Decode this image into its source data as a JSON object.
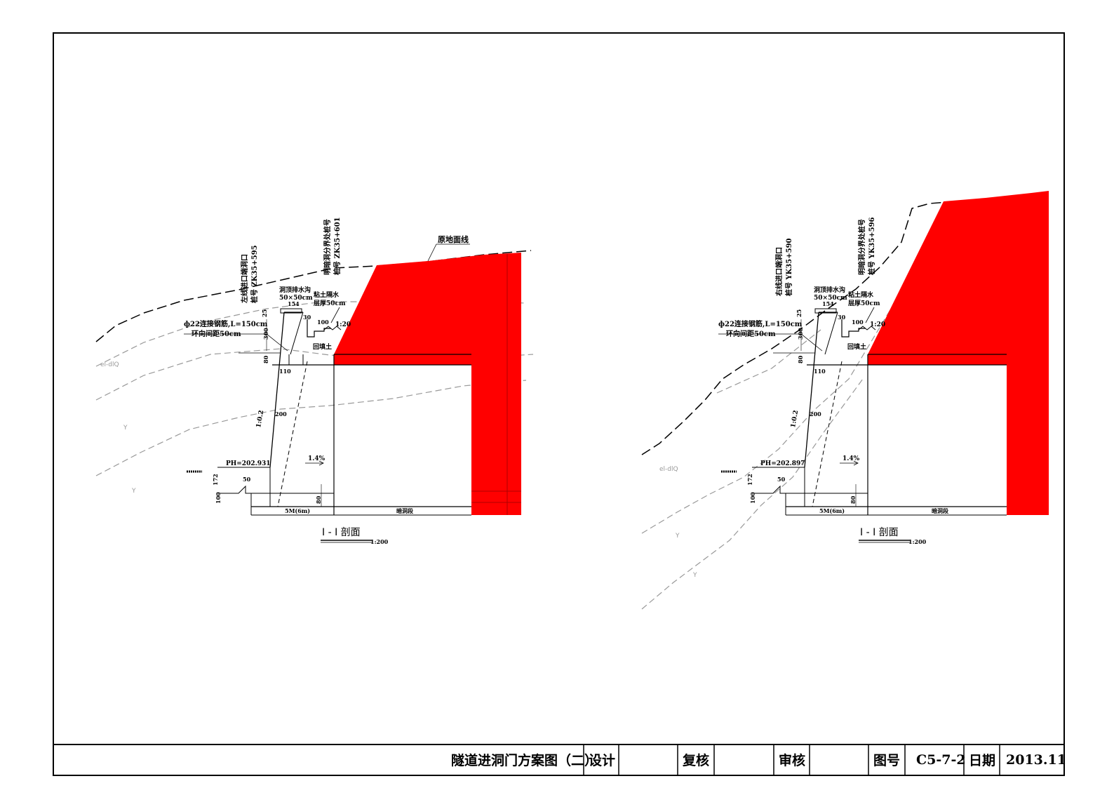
{
  "left_section": {
    "ground_line_label": "原地面线",
    "portal_label": "左线进口端洞口",
    "portal_station": "桩号 ZK35+595",
    "boundary_label": "明暗洞分界处桩号",
    "boundary_station": "桩号 ZK35+601",
    "ditch_label": "洞顶排水沟",
    "ditch_size": "50×50cm",
    "waterproof_label": "粘土隔水",
    "waterproof_thickness": "层厚50cm",
    "rebar_label": "ф22连接钢筋,L=150cm",
    "rebar_spacing": "环向间距50cm",
    "backfill_label": "回填土",
    "slope_ratio": "1:0.2",
    "ratio_1_20": "1:20",
    "elevation": "PH=202.931",
    "gradient": "1.4%",
    "soil_label": "el-dlQ",
    "rock_symbol": "Y",
    "dims": [
      "25",
      "154",
      "30",
      "100",
      "300",
      "80",
      "110",
      "200",
      "50",
      "172",
      "100",
      "80"
    ],
    "seg_left": "5M(6m)",
    "seg_right": "暗洞段",
    "section_title": "I - I 剖面",
    "section_scale": "1:200"
  },
  "right_section": {
    "portal_label": "右线进口端洞口",
    "portal_station": "桩号 YK35+590",
    "boundary_label": "明暗洞分界处桩号",
    "boundary_station": "桩号 YK35+596",
    "ditch_label": "洞顶排水沟",
    "ditch_size": "50×50cm",
    "waterproof_label": "粘土隔水",
    "waterproof_thickness": "层厚50cm",
    "rebar_label": "ф22连接钢筋,L=150cm",
    "rebar_spacing": "环向间距50cm",
    "backfill_label": "回填土",
    "slope_ratio": "1:0.2",
    "ratio_1_20": "1:20",
    "elevation": "PH=202.897",
    "gradient": "1.4%",
    "soil_label": "el-dlQ",
    "rock_symbol": "Y",
    "dims": [
      "25",
      "154",
      "30",
      "100",
      "300",
      "80",
      "110",
      "200",
      "50",
      "172",
      "100",
      "80"
    ],
    "seg_left": "5M(6m)",
    "seg_right": "暗洞段",
    "section_title": "I - I 剖面",
    "section_scale": "1:200"
  },
  "title_block": {
    "drawing_title": "隧道进洞门方案图（二）",
    "design_label": "设计",
    "design_value": "",
    "review_label": "复核",
    "review_value": "",
    "approve_label": "审核",
    "approve_value": "",
    "drawing_no_label": "图号",
    "drawing_no": "C5-7-2",
    "date_label": "日期",
    "date": "2013.11"
  },
  "colors": {
    "fill_red": "#ff0000",
    "line": "#000000",
    "dashed_gray": "#999999"
  }
}
